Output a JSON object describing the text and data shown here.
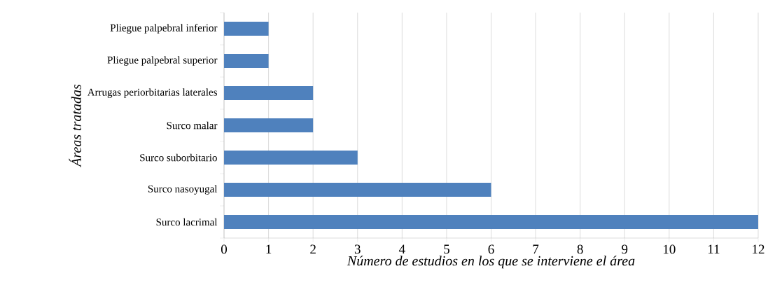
{
  "chart_data": {
    "type": "bar",
    "orientation": "horizontal",
    "xlabel": "Número de estudios en los que se interviene el área",
    "ylabel": "Áreas tratadas",
    "categories": [
      "Pliegue palpebral inferior",
      "Pliegue palpebral superior",
      "Arrugas periorbitarias laterales",
      "Surco malar",
      "Surco suborbitario",
      "Surco nasoyugal",
      "Surco lacrimal"
    ],
    "values": [
      1,
      1,
      2,
      2,
      3,
      6,
      12
    ],
    "color": "#4f81bd",
    "xlim": [
      0,
      12
    ],
    "xticks": [
      0,
      1,
      2,
      3,
      4,
      5,
      6,
      7,
      8,
      9,
      10,
      11,
      12
    ],
    "grid": "x"
  }
}
